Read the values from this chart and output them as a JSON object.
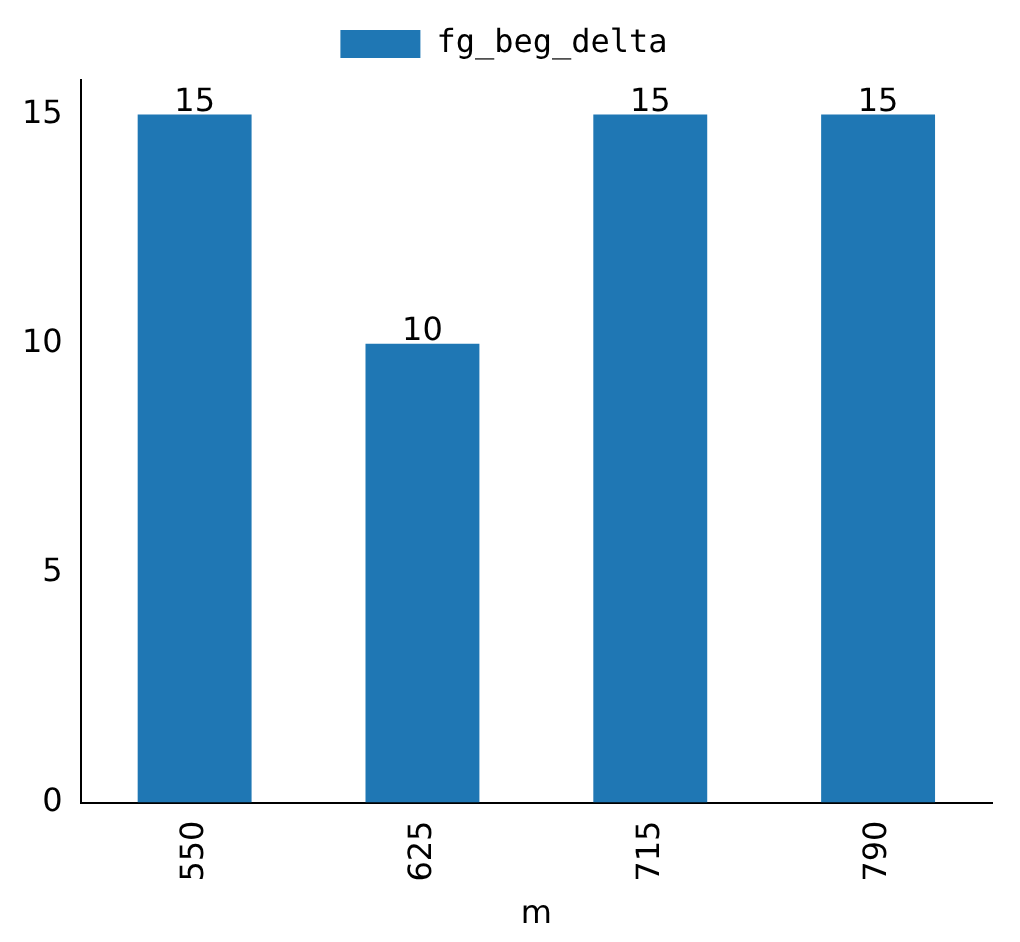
{
  "chart_data": {
    "type": "bar",
    "xlabel": "m",
    "categories": [
      "550",
      "625",
      "715",
      "790"
    ],
    "series": [
      {
        "name": "fg_beg_delta",
        "color": "#1f77b4",
        "values": [
          15,
          10,
          15,
          15
        ]
      }
    ],
    "ylim": [
      0,
      15.75
    ],
    "yticks": [
      0,
      5,
      10,
      15
    ],
    "grid": false,
    "legend": "top",
    "data_labels": true
  }
}
